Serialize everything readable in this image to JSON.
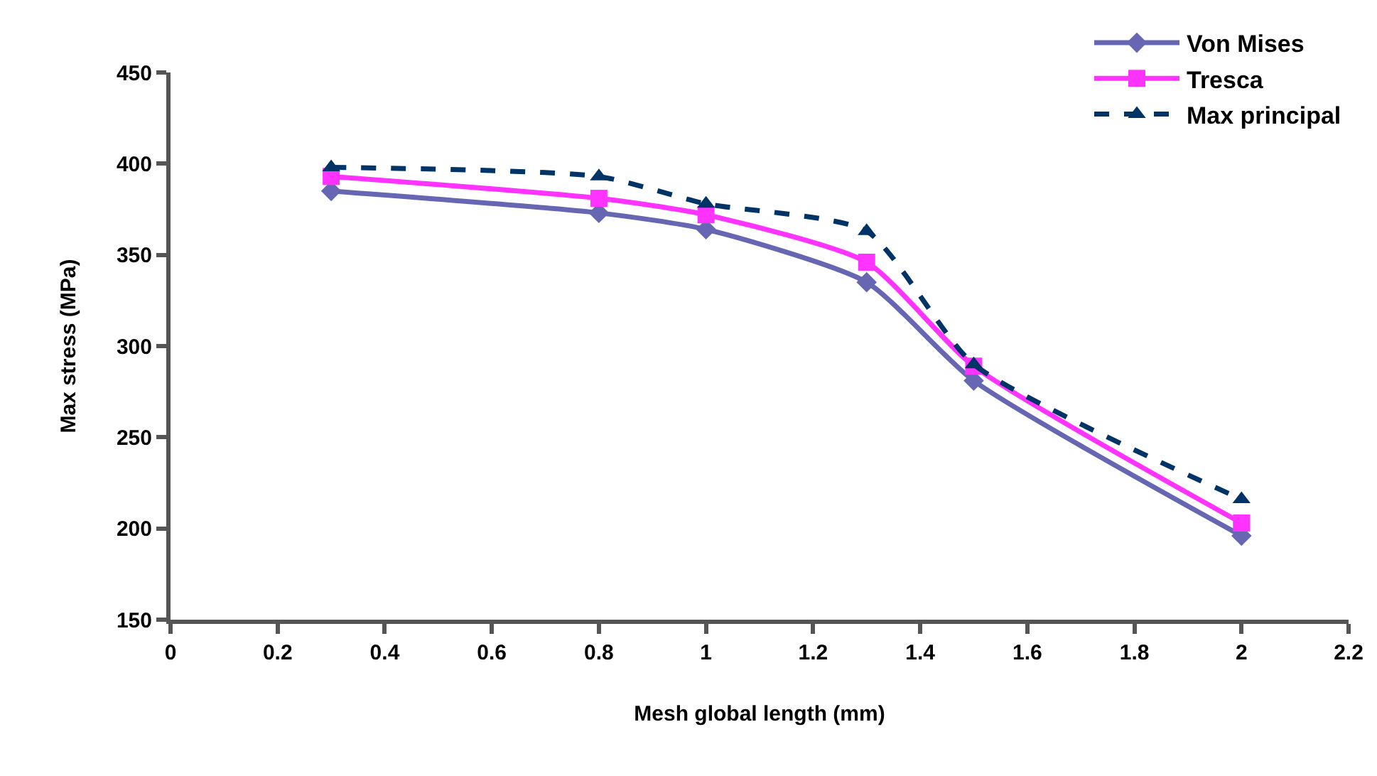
{
  "chart_data": {
    "type": "line",
    "xlabel": "Mesh global length (mm)",
    "ylabel": "Max stress (MPa)",
    "x": [
      0.3,
      0.8,
      1,
      1.3,
      1.5,
      2
    ],
    "series": [
      {
        "name": "Von Mises",
        "color": "#6666b3",
        "marker": "diamond",
        "line_style": "solid",
        "values": [
          385,
          373,
          364,
          335,
          281,
          196
        ]
      },
      {
        "name": "Tresca",
        "color": "#ff33ff",
        "marker": "square",
        "line_style": "solid",
        "values": [
          393,
          381,
          372,
          346,
          289,
          203
        ]
      },
      {
        "name": "Max principal",
        "color": "#003366",
        "marker": "triangle",
        "line_style": "dashed",
        "values": [
          398,
          393,
          378,
          363,
          290,
          216
        ]
      }
    ],
    "xlim": [
      0,
      2.2
    ],
    "xticks": [
      0,
      0.2,
      0.4,
      0.6,
      0.8,
      1,
      1.2,
      1.4,
      1.6,
      1.8,
      2,
      2.2
    ],
    "ylim": [
      150,
      450
    ],
    "yticks": [
      150,
      200,
      250,
      300,
      350,
      400,
      450
    ],
    "grid": false,
    "legend": "top right"
  }
}
